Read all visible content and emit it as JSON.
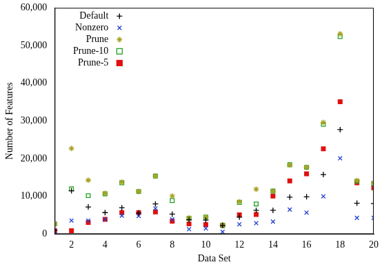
{
  "chart_data": {
    "type": "scatter",
    "x_label": "Data Set",
    "y_label": "Number of Features",
    "x": [
      1,
      2,
      3,
      4,
      5,
      6,
      7,
      8,
      9,
      10,
      11,
      12,
      13,
      14,
      15,
      16,
      17,
      18,
      19,
      20
    ],
    "xlim": [
      1,
      20
    ],
    "xticks": [
      2,
      4,
      6,
      8,
      10,
      12,
      14,
      16,
      18,
      20
    ],
    "ylim": [
      0,
      60000
    ],
    "yticks": [
      0,
      {
        "value": 10000,
        "label": "10,000"
      },
      {
        "value": 20000,
        "label": "20,000"
      },
      {
        "value": 30000,
        "label": "30,000"
      },
      {
        "value": 40000,
        "label": "40,000"
      },
      {
        "value": 50000,
        "label": "50,000"
      },
      {
        "value": 60000,
        "label": "60,000"
      }
    ],
    "grid": false,
    "legend": "top left",
    "series": [
      {
        "name": "Default",
        "color": "#000000",
        "marker": "plus",
        "values": [
          1000,
          11500,
          7200,
          5700,
          7000,
          5600,
          8000,
          5300,
          3800,
          3700,
          2300,
          4500,
          6300,
          6300,
          9800,
          9900,
          15800,
          27700,
          8200,
          8100
        ]
      },
      {
        "name": "Nonzero",
        "color": "#1f3fd0",
        "marker": "x",
        "values": [
          700,
          3600,
          3600,
          3900,
          4900,
          4800,
          6800,
          3900,
          1300,
          1500,
          600,
          2600,
          2900,
          3300,
          6500,
          5700,
          10000,
          20100,
          4300,
          4300
        ]
      },
      {
        "name": "Prune",
        "color": "#a8a020",
        "marker": "star",
        "values": [
          2700,
          22700,
          14300,
          10800,
          13800,
          11300,
          15400,
          10100,
          4300,
          4500,
          2400,
          8600,
          11900,
          11400,
          18300,
          17700,
          29600,
          53100,
          14200,
          13600
        ]
      },
      {
        "name": "Prune-10",
        "color": "#20a020",
        "marker": "open_square",
        "values": [
          2700,
          12000,
          10200,
          10700,
          13600,
          11300,
          15400,
          8900,
          4200,
          4500,
          2300,
          8400,
          8000,
          11400,
          18400,
          17700,
          29100,
          52400,
          14000,
          13400
        ]
      },
      {
        "name": "Prune-5",
        "color": "#e01010",
        "marker": "square",
        "values": [
          900,
          900,
          3100,
          3900,
          5700,
          5700,
          5900,
          3400,
          2700,
          2500,
          2300,
          5100,
          5200,
          10100,
          14100,
          16000,
          22600,
          35100,
          13600,
          12300
        ]
      }
    ]
  }
}
